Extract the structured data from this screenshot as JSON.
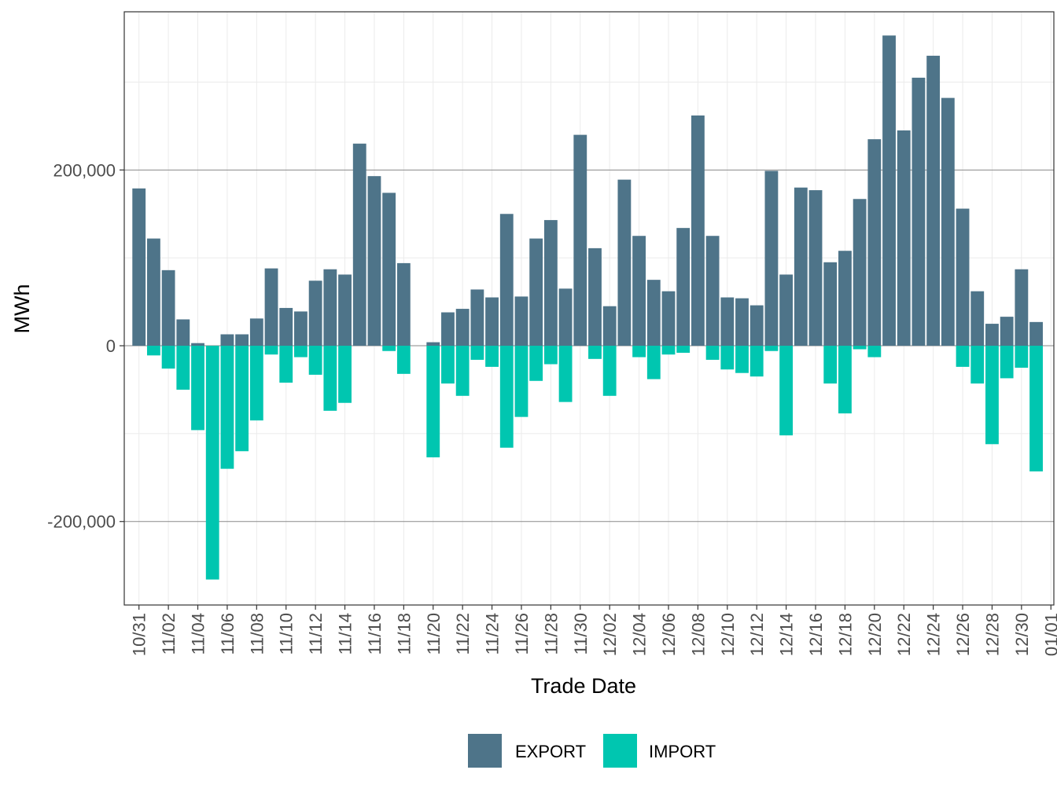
{
  "chart_data": {
    "type": "bar",
    "stacked": "diverging",
    "xlabel": "Trade Date",
    "ylabel": "MWh",
    "ylim": [
      -295000,
      380000
    ],
    "yticks": [
      -200000,
      0,
      200000
    ],
    "ytick_labels": [
      "-200,000",
      "0",
      "200,000"
    ],
    "xtick_labels": [
      "10/31",
      "11/02",
      "11/04",
      "11/06",
      "11/08",
      "11/10",
      "11/12",
      "11/14",
      "11/16",
      "11/18",
      "11/20",
      "11/22",
      "11/24",
      "11/26",
      "11/28",
      "11/30",
      "12/02",
      "12/04",
      "12/06",
      "12/08",
      "12/10",
      "12/12",
      "12/14",
      "12/16",
      "12/18",
      "12/20",
      "12/22",
      "12/24",
      "12/26",
      "12/28",
      "12/30",
      "01/01"
    ],
    "grid": true,
    "legend_position": "bottom",
    "categories": [
      "10/31",
      "11/01",
      "11/02",
      "11/03",
      "11/04",
      "11/05",
      "11/06",
      "11/07",
      "11/08",
      "11/09",
      "11/10",
      "11/11",
      "11/12",
      "11/13",
      "11/14",
      "11/15",
      "11/16",
      "11/17",
      "11/18",
      "11/19",
      "11/20",
      "11/21",
      "11/22",
      "11/23",
      "11/24",
      "11/25",
      "11/26",
      "11/27",
      "11/28",
      "11/29",
      "11/30",
      "12/01",
      "12/02",
      "12/03",
      "12/04",
      "12/05",
      "12/06",
      "12/07",
      "12/08",
      "12/09",
      "12/10",
      "12/11",
      "12/12",
      "12/13",
      "12/14",
      "12/15",
      "12/16",
      "12/17",
      "12/18",
      "12/19",
      "12/20",
      "12/21",
      "12/22",
      "12/23",
      "12/24",
      "12/25",
      "12/26",
      "12/27",
      "12/28",
      "12/29",
      "12/30",
      "12/31"
    ],
    "series": [
      {
        "name": "EXPORT",
        "color": "#4e7489",
        "values": [
          179000,
          122000,
          86000,
          30000,
          3000,
          0,
          13000,
          13000,
          31000,
          88000,
          43000,
          39000,
          74000,
          87000,
          81000,
          230000,
          193000,
          174000,
          94000,
          0,
          4000,
          38000,
          42000,
          64000,
          55000,
          150000,
          56000,
          122000,
          143000,
          65000,
          240000,
          111000,
          45000,
          189000,
          125000,
          75000,
          62000,
          134000,
          262000,
          125000,
          55000,
          54000,
          46000,
          199000,
          81000,
          180000,
          177000,
          95000,
          108000,
          167000,
          235000,
          353000,
          245000,
          305000,
          330000,
          282000,
          156000,
          62000,
          25000,
          33000,
          87000,
          27000
        ]
      },
      {
        "name": "IMPORT",
        "color": "#00c6b0",
        "values": [
          0,
          -11000,
          -26000,
          -50000,
          -96000,
          -266000,
          -140000,
          -120000,
          -85000,
          -10000,
          -42000,
          -13000,
          -33000,
          -74000,
          -65000,
          0,
          0,
          -6000,
          -32000,
          0,
          -127000,
          -43000,
          -57000,
          -16000,
          -24000,
          -116000,
          -81000,
          -40000,
          -21000,
          -64000,
          0,
          -15000,
          -57000,
          0,
          -13000,
          -38000,
          -10000,
          -8000,
          0,
          -16000,
          -27000,
          -31000,
          -35000,
          -6000,
          -102000,
          0,
          0,
          -43000,
          -77000,
          -4000,
          -13000,
          0,
          0,
          0,
          0,
          0,
          -24000,
          -43000,
          -112000,
          -37000,
          -25000,
          -143000
        ]
      }
    ]
  }
}
